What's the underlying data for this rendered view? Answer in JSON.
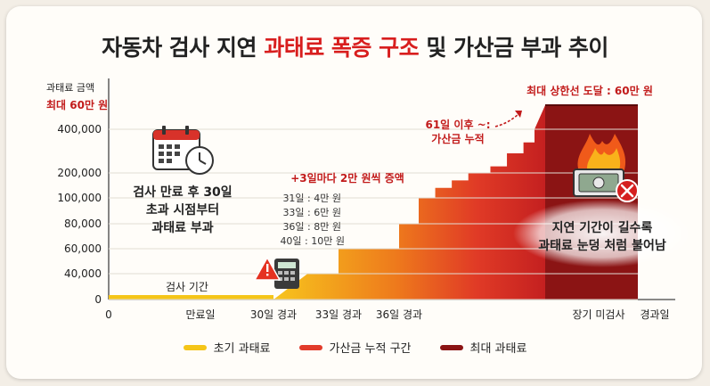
{
  "title": {
    "prefix": "자동차 검사 지연 ",
    "highlight": "과태료 폭증 구조",
    "suffix": " 및 가산금 부과 추이"
  },
  "colors": {
    "initial": "#f5c518",
    "accumulate": "#e23b2a",
    "max": "#8b1414",
    "title_accent": "#d81e1e",
    "label_red": "#c21b1b"
  },
  "chart_data": {
    "type": "area",
    "ylabel": "과태료 금액",
    "y_max_label": "최대 60만 원",
    "yticks": [
      {
        "label": "0",
        "value": 0
      },
      {
        "label": "40,000",
        "value": 40000
      },
      {
        "label": "60,000",
        "value": 60000
      },
      {
        "label": "80,000",
        "value": 80000
      },
      {
        "label": "100,000",
        "value": 100000
      },
      {
        "label": "200,000",
        "value": 200000
      },
      {
        "label": "400,000",
        "value": 400000
      }
    ],
    "xlabel": "경과일",
    "xticks": [
      "0",
      "만료일",
      "30일 경과",
      "33일 경과",
      "36일 경과",
      "장기 미검사"
    ],
    "x_units": "days after expiry",
    "series": [
      {
        "name": "초기 과태료",
        "points": [
          [
            0,
            0
          ],
          [
            30,
            0
          ]
        ]
      },
      {
        "name": "가산금 누적 구간",
        "steps": [
          [
            31,
            40000
          ],
          [
            33,
            60000
          ],
          [
            36,
            80000
          ],
          [
            40,
            100000
          ],
          [
            43,
            140000
          ],
          [
            46,
            170000
          ],
          [
            49,
            200000
          ],
          [
            53,
            230000
          ],
          [
            56,
            290000
          ],
          [
            59,
            340000
          ],
          [
            61,
            400000
          ]
        ]
      },
      {
        "name": "최대 과태료",
        "value": 600000
      }
    ],
    "annotations": {
      "period_label": "검사 기간",
      "step_rule": "+3일마다 2만 원씩 증액",
      "step_list": [
        "31일 : 4만 원",
        "33일 : 6만 원",
        "36일 : 8만 원",
        "40일 : 10만 원"
      ],
      "after_61": "61일 이후 ~:",
      "after_61_b": "가산금 누적",
      "max_reached": "최대 상한선 도달 : 60만 원",
      "start_note": [
        "검사 만료 후 30일",
        "초과 시점부터",
        "과태료 부과"
      ],
      "grow_note": [
        "지연 기간이 길수록",
        "과태료 눈덩 처럼 불어남"
      ]
    },
    "legend": {
      "position": "bottom"
    }
  },
  "legend": {
    "initial": "초기 과태료",
    "accumulate": "가산금 누적 구간",
    "max": "최대 과태료"
  },
  "icons": {
    "calendar": "calendar-clock-icon",
    "warning": "warning-calculator-icon",
    "fire": "burning-money-icon"
  }
}
